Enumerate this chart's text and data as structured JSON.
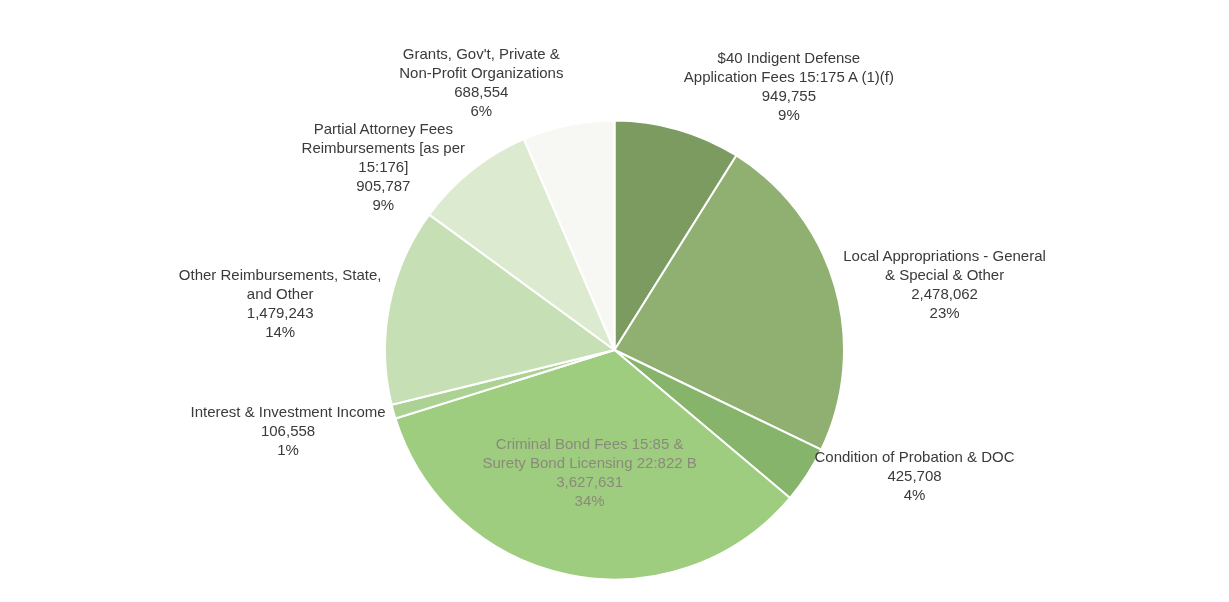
{
  "chart_data": {
    "type": "pie",
    "categories": [
      "$40 Indigent Defense Application Fees 15:175 A (1)(f)",
      "Local Appropriations - General & Special & Other",
      "Condition of Probation & DOC",
      "Criminal Bond Fees 15:85 & Surety Bond Licensing 22:822 B",
      "Interest & Investment Income",
      "Other Reimbursements, State, and Other",
      "Partial Attorney Fees Reimbursements [as per 15:176]",
      "Grants, Gov't, Private & Non-Profit Organizations"
    ],
    "values": [
      949755,
      2478062,
      425708,
      3627631,
      106558,
      1479243,
      905787,
      688554
    ],
    "colors": [
      "#7b9b60",
      "#8fb070",
      "#86b46a",
      "#9fcd80",
      "#acd293",
      "#c6dfb4",
      "#dcebcf",
      "#f7f8f4"
    ],
    "value_labels": [
      "949,755",
      "2,478,062",
      "425,708",
      "3,627,631",
      "106,558",
      "1,479,243",
      "905,787",
      "688,554"
    ],
    "annotations": [
      "9%",
      "23%",
      "4%",
      "34%",
      "1%",
      "14%",
      "9%",
      "6%"
    ]
  }
}
